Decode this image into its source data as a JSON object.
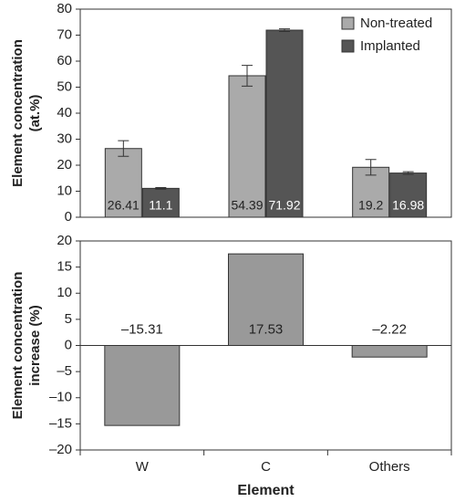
{
  "chart_data": [
    {
      "type": "bar",
      "ylabel": [
        "Element concentration",
        "(at.%)"
      ],
      "series": [
        {
          "name": "Non-treated",
          "color": "#aaaaaa",
          "values": [
            26.41,
            54.39,
            19.2
          ],
          "errors": [
            3,
            4,
            3
          ]
        },
        {
          "name": "Implanted",
          "color": "#555555",
          "values": [
            11.1,
            71.92,
            16.98
          ],
          "errors": [
            0.3,
            0.5,
            0.5
          ]
        }
      ],
      "ylim": [
        0,
        80
      ],
      "yticks": [
        0,
        10,
        20,
        30,
        40,
        50,
        60,
        70,
        80
      ],
      "legend": "top-right"
    },
    {
      "type": "bar",
      "ylabel": [
        "Element concentration",
        "increase (%)"
      ],
      "xlabel": "Element",
      "categories": [
        "W",
        "C",
        "Others"
      ],
      "values": [
        -15.31,
        17.53,
        -2.22
      ],
      "value_labels": [
        "–15.31",
        "17.53",
        "–2.22"
      ],
      "color": "#999999",
      "ylim": [
        -20,
        20
      ],
      "yticks": [
        {
          "value": -20,
          "label": "–20"
        },
        {
          "value": -15,
          "label": "–15"
        },
        {
          "value": -10,
          "label": "–10"
        },
        {
          "value": -5,
          "label": "–5"
        },
        0,
        5,
        10,
        15,
        20
      ]
    }
  ]
}
